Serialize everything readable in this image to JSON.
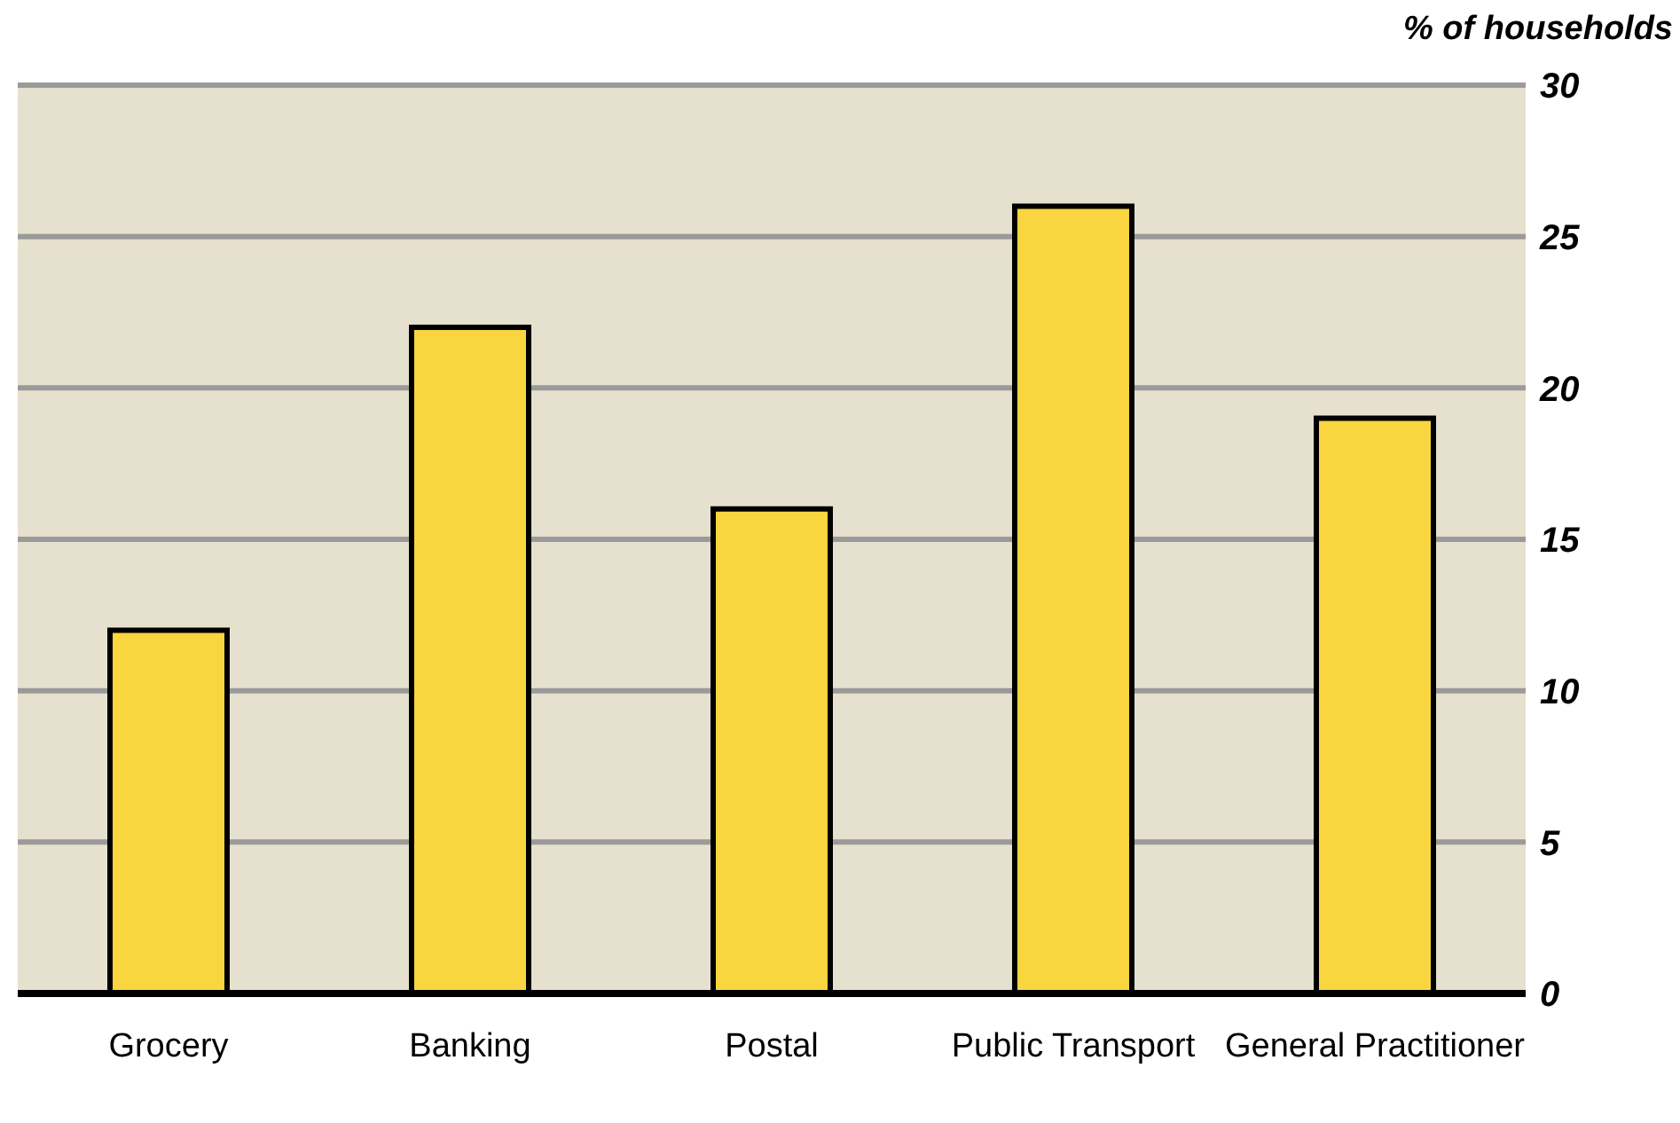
{
  "chart_data": {
    "type": "bar",
    "ylabel": "% of households",
    "categories": [
      "Grocery",
      "Banking",
      "Postal",
      "Public Transport",
      "General Practitioner"
    ],
    "values": [
      12,
      22,
      16,
      26,
      19
    ],
    "color": "#f9d53f",
    "ylim": [
      0,
      30
    ],
    "yticks": [
      0,
      5,
      10,
      15,
      20,
      25,
      30
    ],
    "grid": "y"
  }
}
